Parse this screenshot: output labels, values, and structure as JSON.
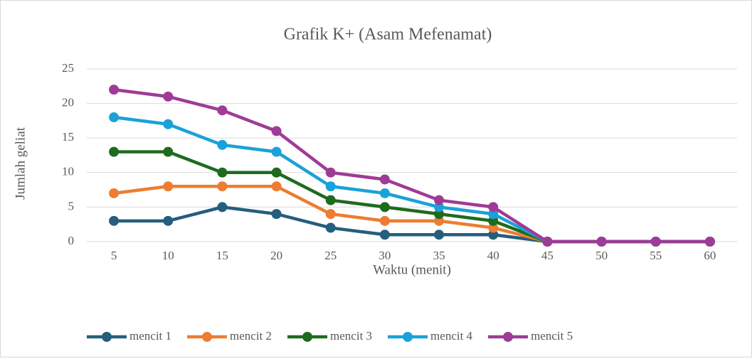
{
  "chart_data": {
    "type": "line",
    "title": "Grafik K+ (Asam Mefenamat)",
    "x_label": "Waktu (menit)",
    "y_label": "Jumlah geliat",
    "categories": [
      "5",
      "10",
      "15",
      "20",
      "25",
      "30",
      "35",
      "40",
      "45",
      "50",
      "55",
      "60"
    ],
    "series": [
      {
        "name": "mencit 1",
        "color": "#255e7e",
        "values": [
          3,
          3,
          5,
          4,
          2,
          1,
          1,
          1,
          0,
          0,
          0,
          0
        ]
      },
      {
        "name": "mencit 2",
        "color": "#ed7d31",
        "values": [
          7,
          8,
          8,
          8,
          4,
          3,
          3,
          2,
          0,
          0,
          0,
          0
        ]
      },
      {
        "name": "mencit 3",
        "color": "#1e6b1e",
        "values": [
          13,
          13,
          10,
          10,
          6,
          5,
          4,
          3,
          0,
          0,
          0,
          0
        ]
      },
      {
        "name": "mencit 4",
        "color": "#1ba1d9",
        "values": [
          18,
          17,
          14,
          13,
          8,
          7,
          5,
          4,
          0,
          0,
          0,
          0
        ]
      },
      {
        "name": "mencit 5",
        "color": "#9e3b96",
        "values": [
          22,
          21,
          19,
          16,
          10,
          9,
          6,
          5,
          0,
          0,
          0,
          0
        ]
      }
    ],
    "ylim": [
      0,
      25
    ],
    "yticks": [
      0,
      5,
      10,
      15,
      20,
      25
    ],
    "grid": true,
    "legend": "bottom"
  }
}
